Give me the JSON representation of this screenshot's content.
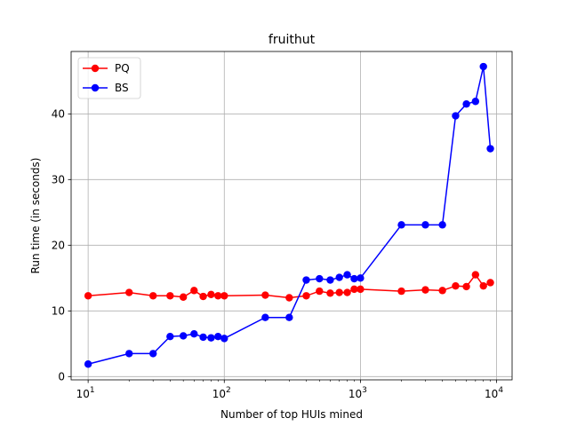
{
  "chart_data": {
    "type": "line",
    "title": "fruithut",
    "xlabel": "Number of top HUIs mined",
    "ylabel": "Run time (in seconds)",
    "xscale": "log",
    "xlim": [
      7.5,
      13000
    ],
    "ylim": [
      -0.5,
      49.5
    ],
    "xticks": [
      {
        "value": 10,
        "base": "10",
        "exp": "1"
      },
      {
        "value": 100,
        "base": "10",
        "exp": "2"
      },
      {
        "value": 1000,
        "base": "10",
        "exp": "3"
      },
      {
        "value": 10000,
        "base": "10",
        "exp": "4"
      }
    ],
    "yticks": [
      0,
      10,
      20,
      30,
      40
    ],
    "grid": true,
    "legend_position": "top-left",
    "series": [
      {
        "name": "PQ",
        "color": "#ff0000",
        "x": [
          10,
          20,
          30,
          40,
          50,
          60,
          70,
          80,
          90,
          100,
          200,
          300,
          400,
          500,
          600,
          700,
          800,
          900,
          1000,
          2000,
          3000,
          4000,
          5000,
          6000,
          7000,
          8000,
          9000
        ],
        "y": [
          12.3,
          12.8,
          12.3,
          12.3,
          12.1,
          13.1,
          12.2,
          12.5,
          12.3,
          12.3,
          12.4,
          12.0,
          12.3,
          13.0,
          12.7,
          12.8,
          12.8,
          13.3,
          13.3,
          13.0,
          13.2,
          13.1,
          13.8,
          13.7,
          15.5,
          13.8,
          14.3
        ]
      },
      {
        "name": "BS",
        "color": "#0000ff",
        "x": [
          10,
          20,
          30,
          40,
          50,
          60,
          70,
          80,
          90,
          100,
          200,
          300,
          400,
          500,
          600,
          700,
          800,
          900,
          1000,
          2000,
          3000,
          4000,
          5000,
          6000,
          7000,
          8000,
          9000
        ],
        "y": [
          1.9,
          3.5,
          3.5,
          6.1,
          6.2,
          6.5,
          6.0,
          5.9,
          6.1,
          5.8,
          9.0,
          9.0,
          14.7,
          14.9,
          14.7,
          15.1,
          15.5,
          14.9,
          15.0,
          23.1,
          23.1,
          23.1,
          39.7,
          41.5,
          41.9,
          47.2,
          34.7
        ]
      }
    ]
  }
}
